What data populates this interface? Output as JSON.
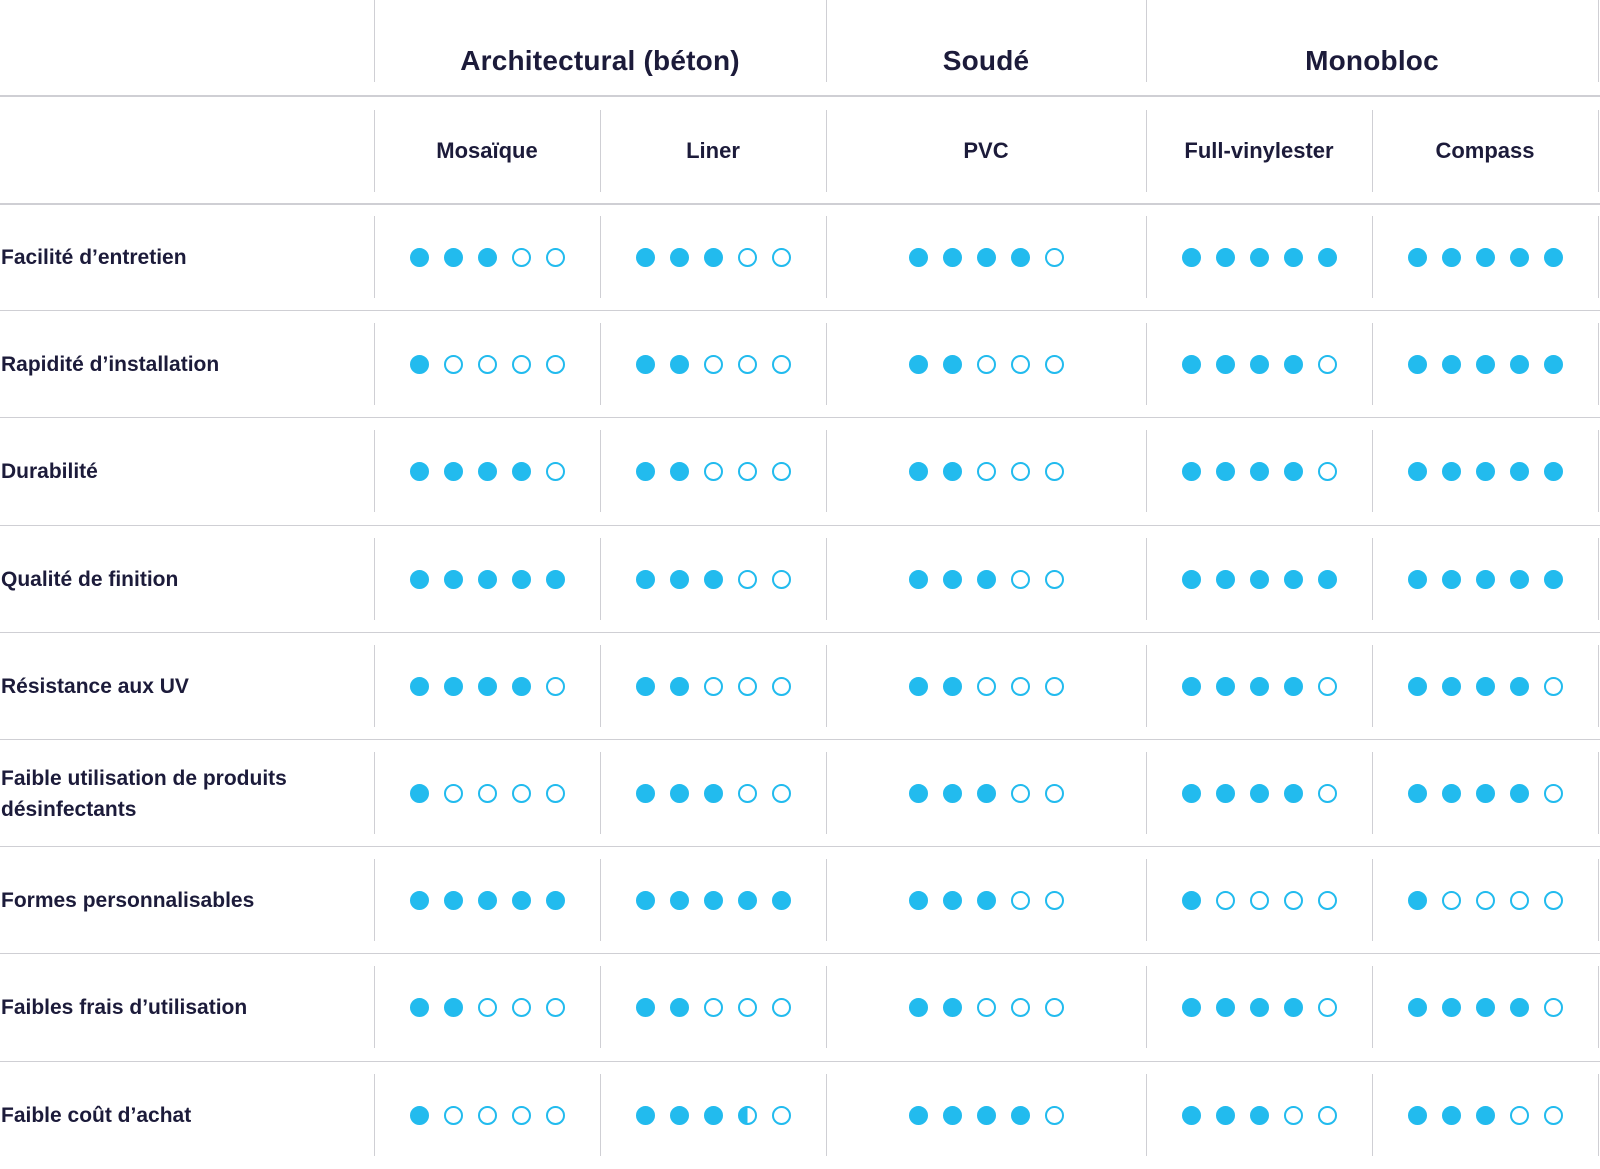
{
  "table": {
    "groups": [
      {
        "label": "Architectural (béton)"
      },
      {
        "label": "Soudé"
      },
      {
        "label": "Monobloc"
      }
    ],
    "columns": [
      {
        "label": "Mosaïque"
      },
      {
        "label": "Liner"
      },
      {
        "label": "PVC"
      },
      {
        "label": "Full-vinylester"
      },
      {
        "label": "Compass"
      }
    ],
    "rating_scale_max": 5,
    "rating_color": "#22bbee",
    "rows": [
      {
        "label": "Facilité d’entretien",
        "ratings": [
          3,
          3,
          4,
          5,
          5
        ]
      },
      {
        "label": "Rapidité d’installation",
        "ratings": [
          1,
          2,
          2,
          4,
          5
        ]
      },
      {
        "label": "Durabilité",
        "ratings": [
          4,
          2,
          2,
          4,
          5
        ]
      },
      {
        "label": "Qualité de finition",
        "ratings": [
          5,
          3,
          3,
          5,
          5
        ]
      },
      {
        "label": "Résistance aux UV",
        "ratings": [
          4,
          2,
          2,
          4,
          4
        ]
      },
      {
        "label": "Faible utilisation de produits désinfectants",
        "ratings": [
          1,
          3,
          3,
          4,
          4
        ]
      },
      {
        "label": "Formes personnalisables",
        "ratings": [
          5,
          5,
          3,
          1,
          1
        ]
      },
      {
        "label": "Faibles frais d’utilisation",
        "ratings": [
          2,
          2,
          2,
          4,
          4
        ]
      },
      {
        "label": "Faible coût d’achat",
        "ratings": [
          1,
          3.5,
          4,
          3,
          3
        ]
      }
    ]
  }
}
